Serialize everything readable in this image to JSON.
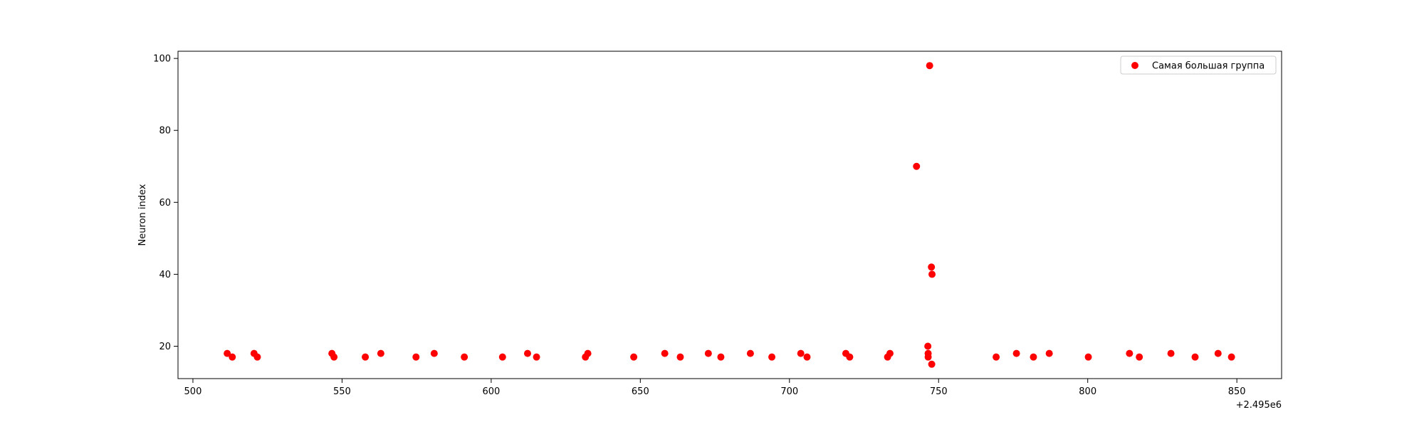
{
  "chart_data": {
    "type": "scatter",
    "title": "",
    "xlabel": "",
    "ylabel": "Neuron index",
    "x_offset_label": "+2.495e6",
    "xlim": [
      495,
      865
    ],
    "ylim": [
      11,
      102
    ],
    "xticks": [
      500,
      550,
      600,
      650,
      700,
      750,
      800,
      850
    ],
    "yticks": [
      20,
      40,
      60,
      80,
      100
    ],
    "grid": false,
    "legend_position": "top-right",
    "series": [
      {
        "name": "Самая большая группа",
        "color": "#ff0000",
        "points": [
          [
            511.5,
            18
          ],
          [
            513.2,
            17
          ],
          [
            520.5,
            18
          ],
          [
            521.6,
            17
          ],
          [
            546.6,
            18
          ],
          [
            547.3,
            17
          ],
          [
            557.8,
            17
          ],
          [
            563.0,
            18
          ],
          [
            574.8,
            17
          ],
          [
            580.9,
            18
          ],
          [
            591.0,
            17
          ],
          [
            603.8,
            17
          ],
          [
            612.2,
            18
          ],
          [
            615.2,
            17
          ],
          [
            631.6,
            17
          ],
          [
            632.4,
            18
          ],
          [
            647.8,
            17
          ],
          [
            658.2,
            18
          ],
          [
            663.4,
            17
          ],
          [
            672.8,
            18
          ],
          [
            677.0,
            17
          ],
          [
            686.9,
            18
          ],
          [
            694.1,
            17
          ],
          [
            703.8,
            18
          ],
          [
            705.9,
            17
          ],
          [
            718.9,
            18
          ],
          [
            720.2,
            17
          ],
          [
            732.9,
            17
          ],
          [
            733.7,
            18
          ],
          [
            742.6,
            70
          ],
          [
            746.4,
            20
          ],
          [
            746.5,
            18
          ],
          [
            746.5,
            17
          ],
          [
            747.0,
            98
          ],
          [
            747.6,
            42
          ],
          [
            747.8,
            40
          ],
          [
            747.7,
            15
          ],
          [
            769.3,
            17
          ],
          [
            776.1,
            18
          ],
          [
            781.8,
            17
          ],
          [
            787.1,
            18
          ],
          [
            800.2,
            17
          ],
          [
            814.0,
            18
          ],
          [
            817.3,
            17
          ],
          [
            827.9,
            18
          ],
          [
            836.0,
            17
          ],
          [
            843.7,
            18
          ],
          [
            848.2,
            17
          ]
        ]
      }
    ]
  }
}
